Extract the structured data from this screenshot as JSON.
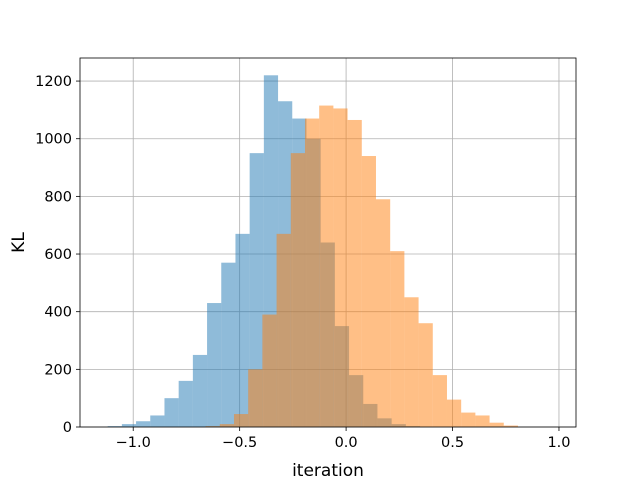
{
  "chart_data": {
    "type": "bar",
    "subtype": "overlapping-histogram",
    "title": "",
    "xlabel": "iteration",
    "ylabel": "KL",
    "xlim": [
      -1.25,
      1.08
    ],
    "ylim": [
      0,
      1280
    ],
    "xticks": [
      -1.0,
      -0.5,
      0.0,
      0.5,
      1.0
    ],
    "xtick_labels": [
      "−1.0",
      "−0.5",
      "0.0",
      "0.5",
      "1.0"
    ],
    "yticks": [
      0,
      200,
      400,
      600,
      800,
      1000,
      1200
    ],
    "ytick_labels": [
      "0",
      "200",
      "400",
      "600",
      "800",
      "1000",
      "1200"
    ],
    "grid": true,
    "legend": "none",
    "series": [
      {
        "color": "#1f77b4",
        "opacity": 0.5,
        "bin_start": -1.12,
        "bin_width": 0.0667,
        "values": [
          3,
          10,
          20,
          40,
          100,
          160,
          250,
          430,
          570,
          670,
          950,
          1220,
          1130,
          1070,
          1000,
          640,
          350,
          180,
          80,
          30,
          10,
          3
        ]
      },
      {
        "color": "#ff7f0e",
        "opacity": 0.5,
        "bin_start": -0.66,
        "bin_width": 0.0667,
        "values": [
          3,
          10,
          45,
          200,
          390,
          670,
          950,
          1070,
          1115,
          1105,
          1065,
          940,
          790,
          610,
          450,
          360,
          180,
          95,
          50,
          40,
          15,
          5
        ]
      }
    ]
  }
}
